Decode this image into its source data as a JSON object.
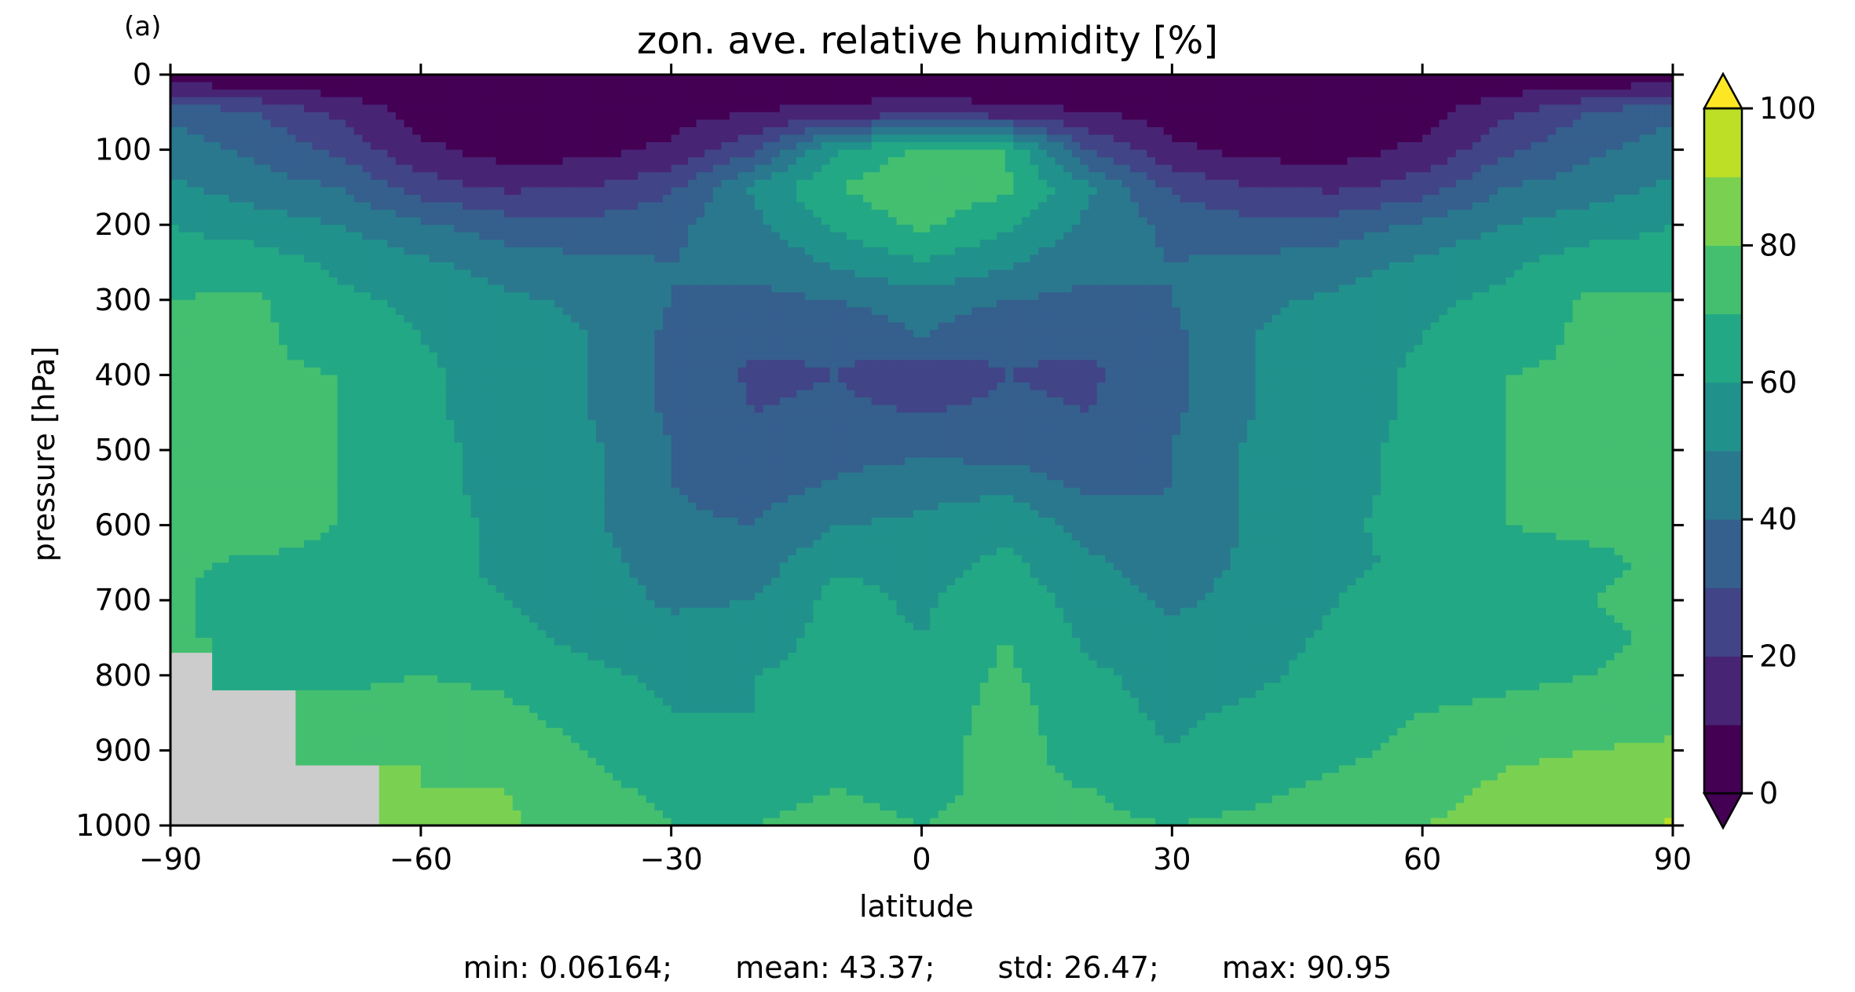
{
  "panel_label": "(a)",
  "chart_data": {
    "type": "heatmap",
    "title": "zon. ave. relative humidity [%]",
    "xlabel": "latitude",
    "ylabel": "pressure [hPa]",
    "xlim": [
      -90,
      90
    ],
    "ylim": [
      1000,
      0
    ],
    "x_ticks": [
      -90,
      -60,
      -30,
      0,
      30,
      60,
      90
    ],
    "x_tick_labels": [
      "−90",
      "−60",
      "−30",
      "0",
      "30",
      "60",
      "90"
    ],
    "y_ticks": [
      0,
      100,
      200,
      300,
      400,
      500,
      600,
      700,
      800,
      900,
      1000
    ],
    "y_tick_labels": [
      "0",
      "100",
      "200",
      "300",
      "400",
      "500",
      "600",
      "700",
      "800",
      "900",
      "1000"
    ],
    "colorbar": {
      "levels": [
        0,
        10,
        20,
        30,
        40,
        50,
        60,
        70,
        80,
        90,
        100
      ],
      "tick_values": [
        0,
        20,
        40,
        60,
        80,
        100
      ],
      "tick_labels": [
        "0",
        "20",
        "40",
        "60",
        "80",
        "100"
      ],
      "colors": [
        "#440154",
        "#482475",
        "#414487",
        "#355f8d",
        "#2a788e",
        "#21918c",
        "#22a884",
        "#44bf70",
        "#7ad151",
        "#bddf26",
        "#fde725"
      ],
      "under_color": "#440154",
      "over_color": "#fde725",
      "missing_color": "#cccccc"
    },
    "field": {
      "description_of_levels": "contour-filled zonal mean field",
      "lat": [
        -90,
        -80,
        -70,
        -60,
        -50,
        -40,
        -30,
        -20,
        -10,
        0,
        10,
        20,
        30,
        40,
        50,
        60,
        70,
        80,
        90
      ],
      "pressure": [
        0,
        10,
        50,
        100,
        150,
        200,
        250,
        300,
        350,
        400,
        450,
        500,
        550,
        600,
        650,
        700,
        750,
        800,
        850,
        900,
        950,
        1000
      ],
      "values": [
        [
          8,
          5,
          3,
          2,
          2,
          2,
          2,
          2,
          2,
          2,
          2,
          2,
          2,
          2,
          2,
          2,
          3,
          5,
          8
        ],
        [
          8,
          5,
          3,
          2,
          2,
          2,
          2,
          2,
          2,
          2,
          2,
          2,
          2,
          2,
          2,
          2,
          3,
          5,
          8
        ],
        [
          38,
          30,
          18,
          6,
          4,
          4,
          6,
          10,
          14,
          16,
          14,
          10,
          6,
          4,
          4,
          6,
          18,
          30,
          38
        ],
        [
          45,
          38,
          28,
          12,
          6,
          6,
          12,
          28,
          60,
          72,
          70,
          30,
          12,
          6,
          6,
          12,
          28,
          38,
          45
        ],
        [
          52,
          45,
          40,
          25,
          18,
          20,
          28,
          52,
          70,
          78,
          72,
          52,
          28,
          20,
          18,
          25,
          40,
          45,
          52
        ],
        [
          60,
          55,
          50,
          42,
          35,
          32,
          38,
          48,
          62,
          72,
          62,
          48,
          38,
          32,
          35,
          42,
          50,
          55,
          60
        ],
        [
          65,
          65,
          58,
          52,
          45,
          42,
          40,
          42,
          52,
          60,
          52,
          42,
          40,
          42,
          45,
          52,
          58,
          65,
          65
        ],
        [
          70,
          72,
          62,
          58,
          52,
          48,
          40,
          38,
          40,
          46,
          40,
          38,
          40,
          48,
          52,
          58,
          62,
          72,
          72
        ],
        [
          72,
          72,
          65,
          60,
          55,
          50,
          38,
          32,
          32,
          40,
          32,
          32,
          38,
          50,
          55,
          60,
          65,
          72,
          72
        ],
        [
          72,
          72,
          70,
          62,
          56,
          50,
          38,
          28,
          30,
          22,
          30,
          28,
          38,
          50,
          56,
          62,
          70,
          72,
          72
        ],
        [
          72,
          72,
          70,
          62,
          56,
          50,
          38,
          30,
          32,
          30,
          32,
          30,
          38,
          50,
          56,
          62,
          70,
          72,
          72
        ],
        [
          72,
          72,
          70,
          62,
          58,
          52,
          40,
          30,
          36,
          38,
          36,
          30,
          40,
          52,
          58,
          62,
          70,
          72,
          72
        ],
        [
          72,
          74,
          70,
          62,
          58,
          52,
          40,
          36,
          42,
          46,
          48,
          38,
          40,
          52,
          58,
          62,
          70,
          72,
          72
        ],
        [
          72,
          78,
          70,
          64,
          58,
          52,
          42,
          40,
          50,
          52,
          58,
          45,
          42,
          52,
          58,
          64,
          70,
          72,
          72
        ],
        [
          72,
          68,
          66,
          64,
          58,
          54,
          45,
          45,
          58,
          56,
          62,
          52,
          45,
          52,
          58,
          62,
          66,
          68,
          72
        ],
        [
          72,
          64,
          64,
          64,
          60,
          56,
          48,
          50,
          64,
          58,
          68,
          55,
          48,
          54,
          60,
          64,
          66,
          70,
          72
        ],
        [
          72,
          64,
          64,
          66,
          62,
          58,
          54,
          55,
          64,
          60,
          70,
          58,
          52,
          56,
          62,
          64,
          66,
          68,
          72
        ],
        [
          null,
          66,
          68,
          70,
          68,
          62,
          58,
          60,
          64,
          62,
          72,
          62,
          56,
          58,
          64,
          66,
          68,
          70,
          72
        ],
        [
          null,
          null,
          72,
          74,
          72,
          66,
          60,
          60,
          62,
          64,
          74,
          64,
          58,
          62,
          66,
          70,
          72,
          74,
          76
        ],
        [
          null,
          null,
          74,
          78,
          76,
          70,
          64,
          64,
          66,
          66,
          74,
          66,
          60,
          64,
          68,
          72,
          78,
          80,
          82
        ],
        [
          null,
          null,
          null,
          80,
          80,
          72,
          68,
          68,
          70,
          68,
          72,
          70,
          66,
          68,
          72,
          76,
          82,
          84,
          84
        ],
        [
          null,
          null,
          null,
          82,
          82,
          74,
          70,
          70,
          72,
          70,
          72,
          72,
          70,
          72,
          74,
          80,
          84,
          86,
          91
        ]
      ]
    },
    "stats": {
      "min_label": "min: 0.06164;",
      "mean_label": "mean: 43.37;",
      "std_label": "std: 26.47;",
      "max_label": "max: 90.95"
    }
  }
}
